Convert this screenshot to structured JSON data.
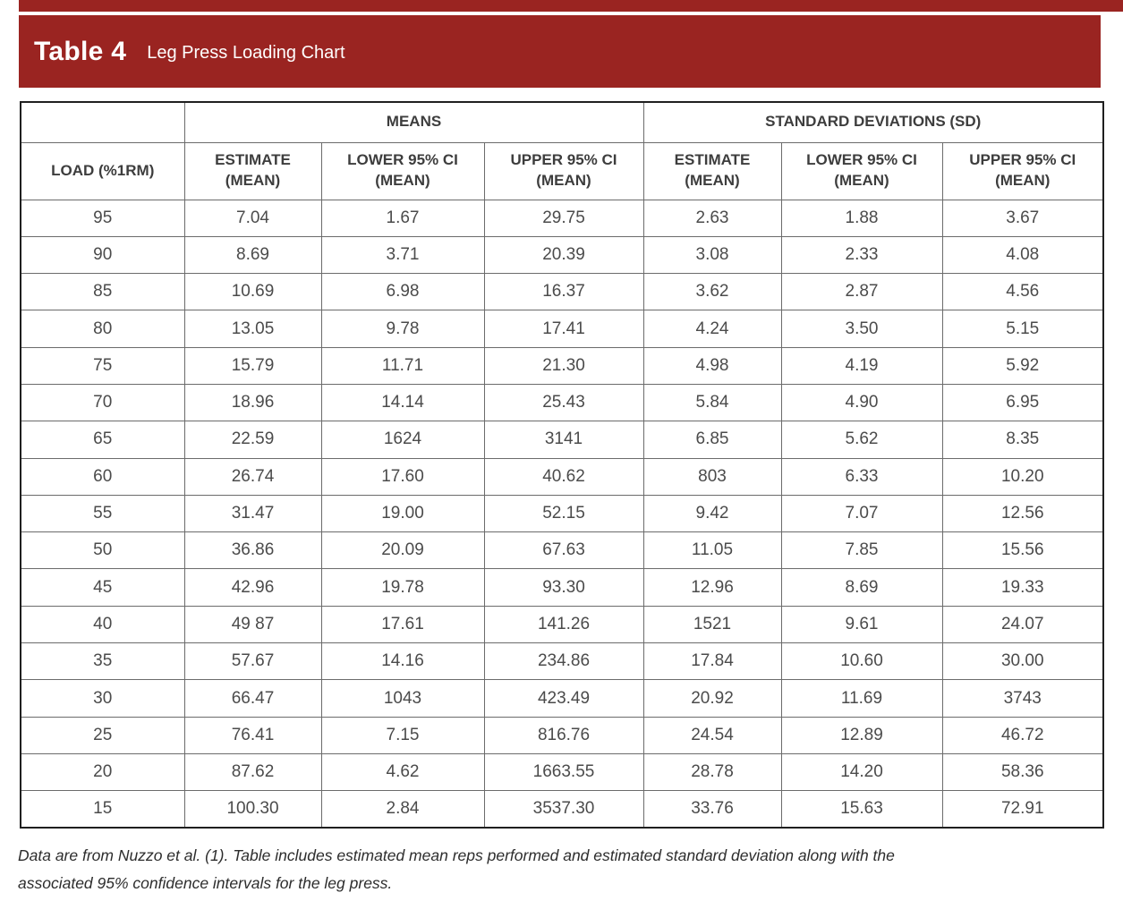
{
  "banner": {
    "label": "Table 4",
    "title": "Leg Press Loading Chart",
    "bg_color": "#9a2421"
  },
  "table": {
    "group_headers": {
      "blank": "",
      "means": "MEANS",
      "sd": "STANDARD DEVIATIONS (SD)"
    },
    "column_headers": [
      "LOAD (%1RM)",
      "ESTIMATE\n(MEAN)",
      "LOWER 95% CI\n(MEAN)",
      "UPPER 95% CI\n(MEAN)",
      "ESTIMATE\n(MEAN)",
      "LOWER 95% CI\n(MEAN)",
      "UPPER 95% CI\n(MEAN)"
    ],
    "rows": [
      [
        "95",
        "7.04",
        "1.67",
        "29.75",
        "2.63",
        "1.88",
        "3.67"
      ],
      [
        "90",
        "8.69",
        "3.71",
        "20.39",
        "3.08",
        "2.33",
        "4.08"
      ],
      [
        "85",
        "10.69",
        "6.98",
        "16.37",
        "3.62",
        "2.87",
        "4.56"
      ],
      [
        "80",
        "13.05",
        "9.78",
        "17.41",
        "4.24",
        "3.50",
        "5.15"
      ],
      [
        "75",
        "15.79",
        "11.71",
        "21.30",
        "4.98",
        "4.19",
        "5.92"
      ],
      [
        "70",
        "18.96",
        "14.14",
        "25.43",
        "5.84",
        "4.90",
        "6.95"
      ],
      [
        "65",
        "22.59",
        "1624",
        "3141",
        "6.85",
        "5.62",
        "8.35"
      ],
      [
        "60",
        "26.74",
        "17.60",
        "40.62",
        "803",
        "6.33",
        "10.20"
      ],
      [
        "55",
        "31.47",
        "19.00",
        "52.15",
        "9.42",
        "7.07",
        "12.56"
      ],
      [
        "50",
        "36.86",
        "20.09",
        "67.63",
        "11.05",
        "7.85",
        "15.56"
      ],
      [
        "45",
        "42.96",
        "19.78",
        "93.30",
        "12.96",
        "8.69",
        "19.33"
      ],
      [
        "40",
        "49 87",
        "17.61",
        "141.26",
        "1521",
        "9.61",
        "24.07"
      ],
      [
        "35",
        "57.67",
        "14.16",
        "234.86",
        "17.84",
        "10.60",
        "30.00"
      ],
      [
        "30",
        "66.47",
        "1043",
        "423.49",
        "20.92",
        "11.69",
        "3743"
      ],
      [
        "25",
        "76.41",
        "7.15",
        "816.76",
        "24.54",
        "12.89",
        "46.72"
      ],
      [
        "20",
        "87.62",
        "4.62",
        "1663.55",
        "28.78",
        "14.20",
        "58.36"
      ],
      [
        "15",
        "100.30",
        "2.84",
        "3537.30",
        "33.76",
        "15.63",
        "72.91"
      ]
    ]
  },
  "footnote": "Data are from Nuzzo et al. (1). Table includes estimated mean reps performed and estimated standard deviation along with the\nassociated 95% confidence intervals for the leg press."
}
